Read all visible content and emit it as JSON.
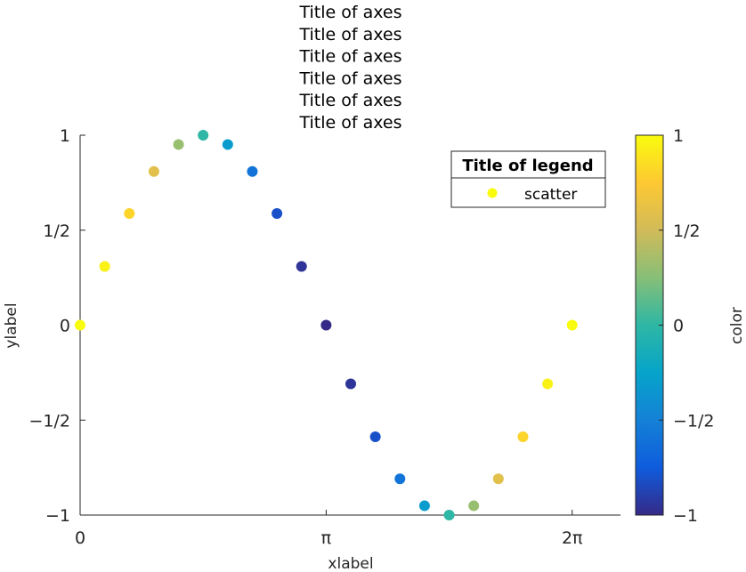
{
  "chart_data": {
    "type": "scatter",
    "title_lines": [
      "Title of axes",
      "Title of axes",
      "Title of axes",
      "Title of axes",
      "Title of axes",
      "Title of axes"
    ],
    "xlabel": "xlabel",
    "ylabel": "ylabel",
    "xlim": [
      0,
      6.9
    ],
    "ylim": [
      -1,
      1
    ],
    "x_ticks": [
      {
        "value": 0,
        "label": "0"
      },
      {
        "value": 3.14159,
        "label": "π"
      },
      {
        "value": 6.28319,
        "label": "2π"
      }
    ],
    "y_ticks": [
      {
        "value": -1,
        "label": "−1"
      },
      {
        "value": -0.5,
        "label": "−1/2"
      },
      {
        "value": 0,
        "label": "0"
      },
      {
        "value": 0.5,
        "label": "1/2"
      },
      {
        "value": 1,
        "label": "1"
      }
    ],
    "grid": false,
    "legend": {
      "title": "Title of legend",
      "entries": [
        {
          "label": "scatter",
          "color": "#f9fb0e"
        }
      ],
      "location": "top-right"
    },
    "colorbar": {
      "label": "color",
      "limits": [
        -1,
        1
      ],
      "ticks": [
        {
          "value": -1,
          "label": "−1"
        },
        {
          "value": -0.5,
          "label": "−1/2"
        },
        {
          "value": 0,
          "label": "0"
        },
        {
          "value": 0.5,
          "label": "1/2"
        },
        {
          "value": 1,
          "label": "1"
        }
      ],
      "colormap": "parula",
      "colormap_stops": [
        "#352a87",
        "#0f5cdd",
        "#1481d6",
        "#06a4ca",
        "#2eb7a4",
        "#87bf77",
        "#d1bb59",
        "#fec832",
        "#f9fb0e"
      ]
    },
    "series": [
      {
        "name": "scatter",
        "x": [
          0,
          0.31416,
          0.62832,
          0.94248,
          1.25664,
          1.5708,
          1.88496,
          2.19911,
          2.51327,
          2.82743,
          3.14159,
          3.45575,
          3.76991,
          4.08407,
          4.39823,
          4.71239,
          5.02655,
          5.34071,
          5.65487,
          5.96903,
          6.28319
        ],
        "y": [
          0,
          0.309,
          0.5878,
          0.809,
          0.9511,
          1,
          0.9511,
          0.809,
          0.5878,
          0.309,
          0,
          -0.309,
          -0.5878,
          -0.809,
          -0.9511,
          -1,
          -0.9511,
          -0.809,
          -0.5878,
          -0.309,
          0
        ],
        "color_values": [
          1,
          0.9511,
          0.809,
          0.5878,
          0.309,
          0,
          -0.309,
          -0.5878,
          -0.809,
          -0.9511,
          -1,
          -0.9511,
          -0.809,
          -0.5878,
          -0.309,
          0,
          0.309,
          0.5878,
          0.809,
          0.9511,
          1
        ]
      }
    ]
  }
}
